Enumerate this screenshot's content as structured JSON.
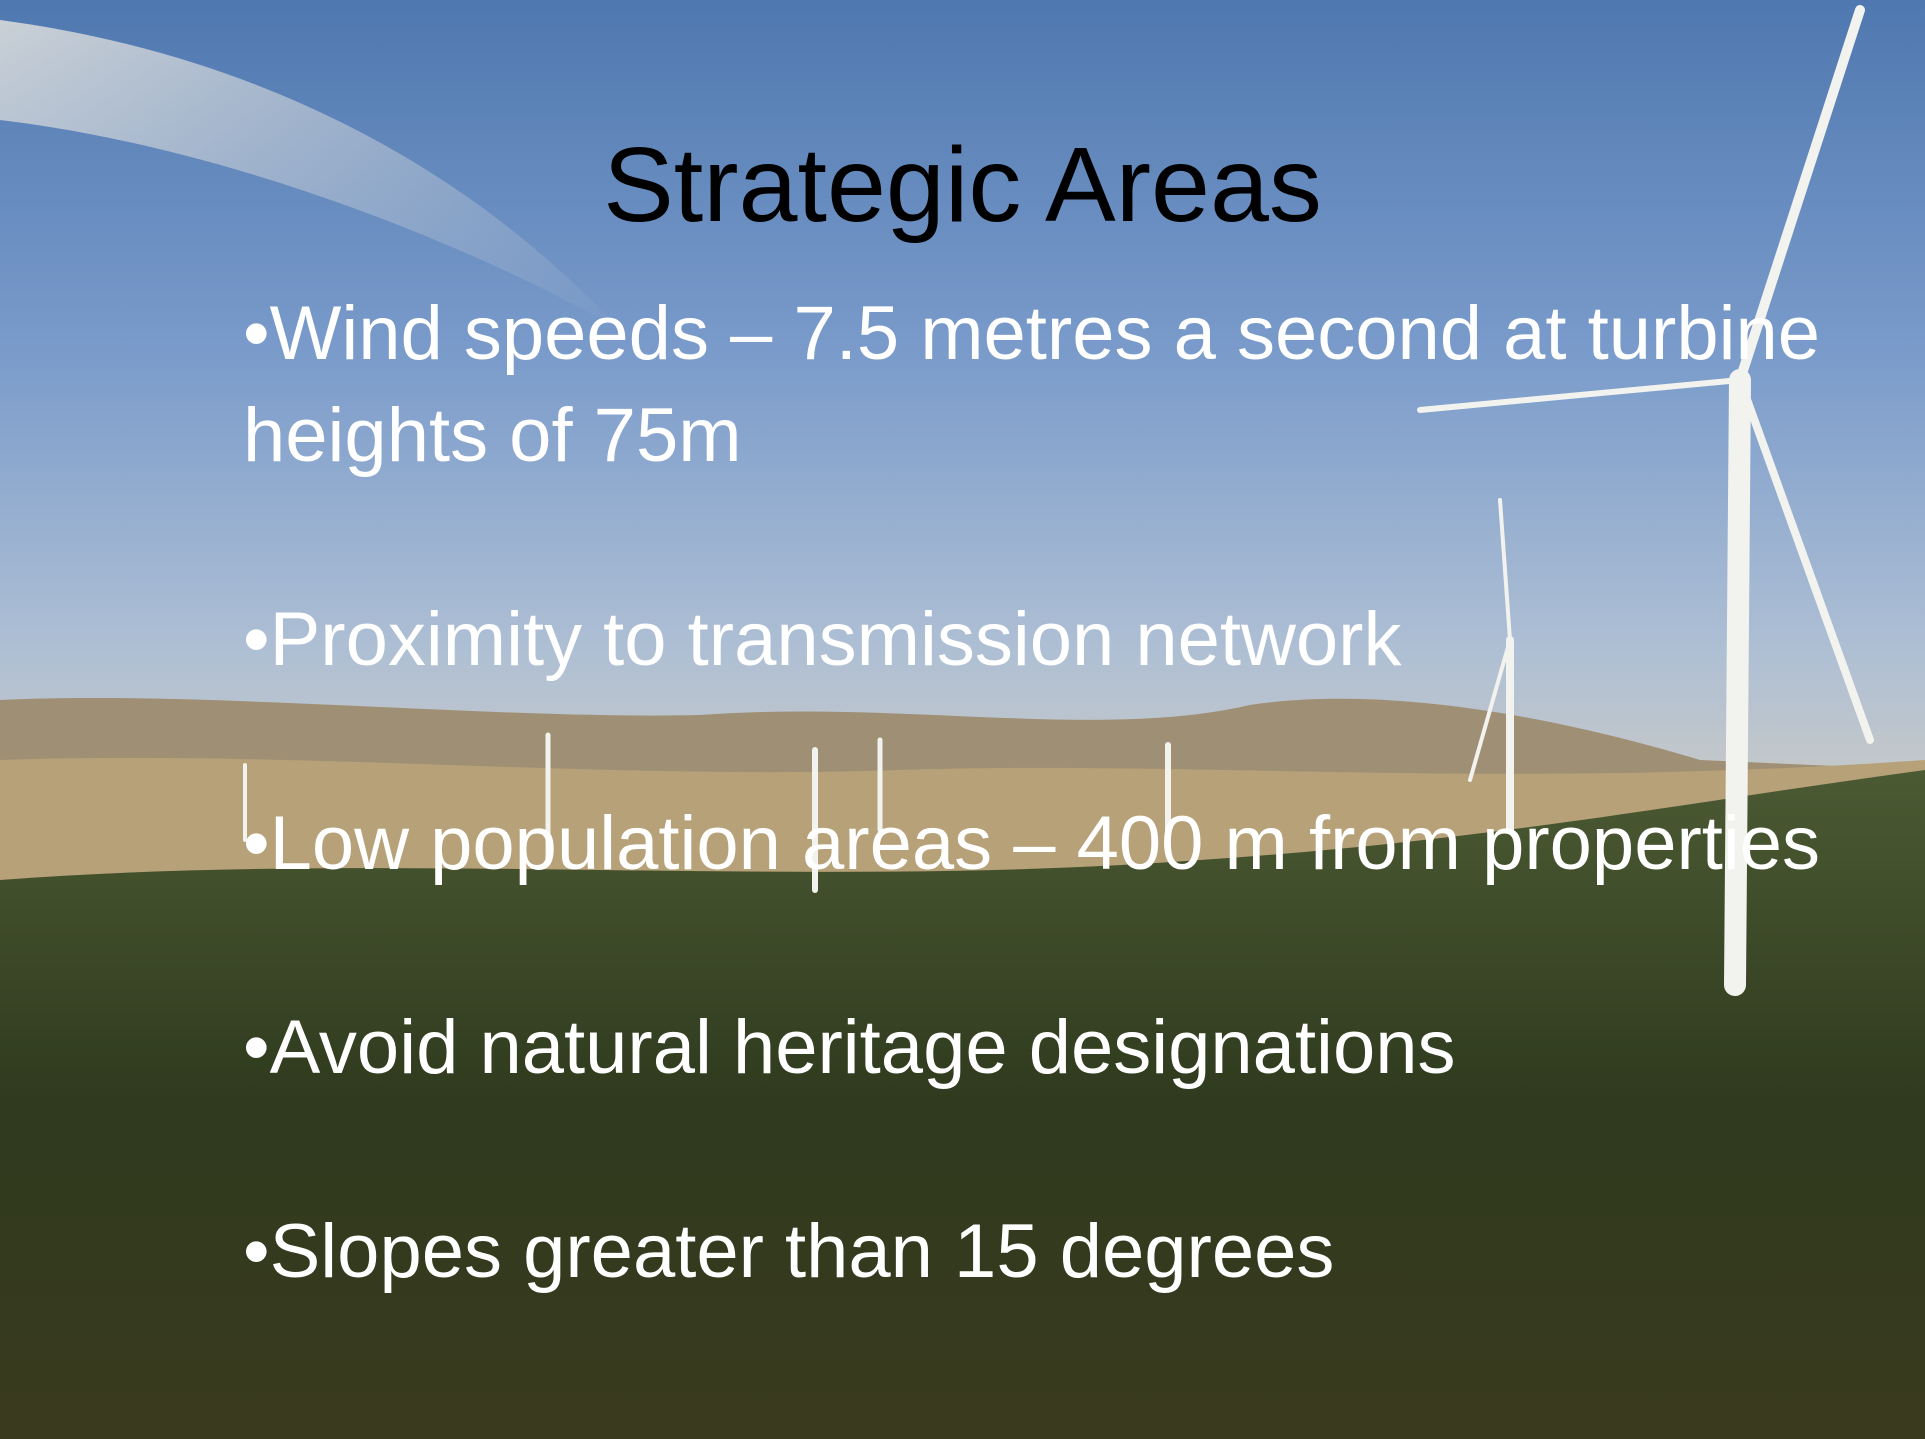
{
  "slide": {
    "title": "Strategic Areas",
    "bullets": [
      "•Wind speeds – 7.5 metres a second at turbine heights of 75m",
      "•Proximity to transmission network",
      "•Low population areas – 400 m from properties",
      "•Avoid natural heritage designations",
      "•Slopes greater than 15 degrees"
    ]
  }
}
